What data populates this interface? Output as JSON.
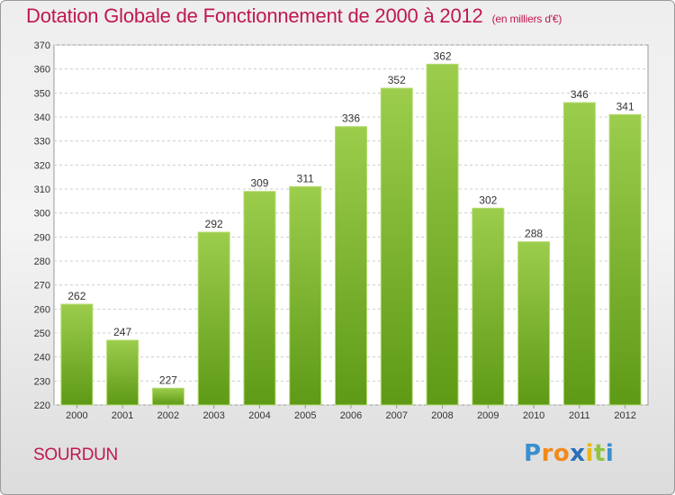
{
  "header": {
    "title": "Dotation Globale de Fonctionnement de 2000 à 2012",
    "subtitle": "(en milliers d'€)"
  },
  "footer": {
    "city": "SOURDUN",
    "logo": {
      "letters": [
        "P",
        "r",
        "o",
        "x",
        "i",
        "t",
        "i"
      ],
      "colors": [
        "#3a8fd0",
        "#f08a1c",
        "#f08a1c",
        "#2a6fb8",
        "#e8b81a",
        "#8dc63f",
        "#3a8fd0"
      ]
    }
  },
  "chart_data": {
    "type": "bar",
    "categories": [
      "2000",
      "2001",
      "2002",
      "2003",
      "2004",
      "2005",
      "2006",
      "2007",
      "2008",
      "2009",
      "2010",
      "2011",
      "2012"
    ],
    "values": [
      262,
      247,
      227,
      292,
      309,
      311,
      336,
      352,
      362,
      302,
      288,
      346,
      341
    ],
    "title": "Dotation Globale de Fonctionnement de 2000 à 2012",
    "subtitle": "(en milliers d'€)",
    "ylim": [
      220,
      370
    ],
    "yticks": [
      220,
      230,
      240,
      250,
      260,
      270,
      280,
      290,
      300,
      310,
      320,
      330,
      340,
      350,
      360,
      370
    ],
    "grid": true,
    "bar_color_top": "#9ccd4c",
    "bar_color_bottom": "#5e9a16"
  }
}
